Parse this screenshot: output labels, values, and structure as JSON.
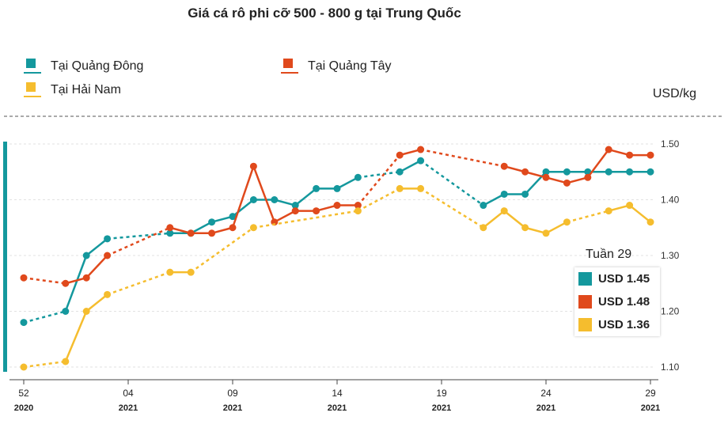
{
  "chart_data": {
    "type": "line",
    "title": "Giá cá rô phi cỡ 500 - 800 g tại Trung Quốc",
    "ylabel": "USD/kg",
    "ylim": [
      1.1,
      1.5
    ],
    "yticks": [
      "1.10",
      "1.20",
      "1.30",
      "1.40",
      "1.50"
    ],
    "x_count": 31,
    "xticks": [
      {
        "index": 0,
        "week": "52",
        "year": "2020"
      },
      {
        "index": 5,
        "week": "04",
        "year": "2021"
      },
      {
        "index": 10,
        "week": "09",
        "year": "2021"
      },
      {
        "index": 15,
        "week": "14",
        "year": "2021"
      },
      {
        "index": 20,
        "week": "19",
        "year": "2021"
      },
      {
        "index": 25,
        "week": "24",
        "year": "2021"
      },
      {
        "index": 30,
        "week": "29",
        "year": "2021"
      }
    ],
    "grid": true,
    "legend_position": "top",
    "series": [
      {
        "name": "Tại Quảng Đông",
        "color": "#14989d",
        "points": [
          [
            0,
            1.18
          ],
          [
            2,
            1.2
          ],
          [
            3,
            1.3
          ],
          [
            4,
            1.33
          ],
          [
            7,
            1.34
          ],
          [
            8,
            1.34
          ],
          [
            9,
            1.36
          ],
          [
            10,
            1.37
          ],
          [
            11,
            1.4
          ],
          [
            12,
            1.4
          ],
          [
            13,
            1.39
          ],
          [
            14,
            1.42
          ],
          [
            15,
            1.42
          ],
          [
            16,
            1.44
          ],
          [
            18,
            1.45
          ],
          [
            19,
            1.47
          ],
          [
            22,
            1.39
          ],
          [
            23,
            1.41
          ],
          [
            24,
            1.41
          ],
          [
            25,
            1.45
          ],
          [
            26,
            1.45
          ],
          [
            27,
            1.45
          ],
          [
            28,
            1.45
          ],
          [
            29,
            1.45
          ],
          [
            30,
            1.45
          ]
        ]
      },
      {
        "name": "Tại Quảng Tây",
        "color": "#e0491c",
        "points": [
          [
            0,
            1.26
          ],
          [
            2,
            1.25
          ],
          [
            3,
            1.26
          ],
          [
            4,
            1.3
          ],
          [
            7,
            1.35
          ],
          [
            8,
            1.34
          ],
          [
            9,
            1.34
          ],
          [
            10,
            1.35
          ],
          [
            11,
            1.46
          ],
          [
            12,
            1.36
          ],
          [
            13,
            1.38
          ],
          [
            14,
            1.38
          ],
          [
            15,
            1.39
          ],
          [
            16,
            1.39
          ],
          [
            18,
            1.48
          ],
          [
            19,
            1.49
          ],
          [
            23,
            1.46
          ],
          [
            24,
            1.45
          ],
          [
            25,
            1.44
          ],
          [
            26,
            1.43
          ],
          [
            27,
            1.44
          ],
          [
            28,
            1.49
          ],
          [
            29,
            1.48
          ],
          [
            30,
            1.48
          ]
        ]
      },
      {
        "name": "Tại Hải Nam",
        "color": "#f5bd2e",
        "points": [
          [
            0,
            1.1
          ],
          [
            2,
            1.11
          ],
          [
            3,
            1.2
          ],
          [
            4,
            1.23
          ],
          [
            7,
            1.27
          ],
          [
            8,
            1.27
          ],
          [
            11,
            1.35
          ],
          [
            16,
            1.38
          ],
          [
            18,
            1.42
          ],
          [
            19,
            1.42
          ],
          [
            22,
            1.35
          ],
          [
            23,
            1.38
          ],
          [
            24,
            1.35
          ],
          [
            25,
            1.34
          ],
          [
            26,
            1.36
          ],
          [
            28,
            1.38
          ],
          [
            29,
            1.39
          ],
          [
            30,
            1.36
          ]
        ]
      }
    ],
    "tooltip": {
      "title": "Tuần 29",
      "rows": [
        {
          "label": "USD 1.45",
          "color": "#14989d"
        },
        {
          "label": "USD 1.48",
          "color": "#e0491c"
        },
        {
          "label": "USD 1.36",
          "color": "#f5bd2e"
        }
      ]
    }
  }
}
